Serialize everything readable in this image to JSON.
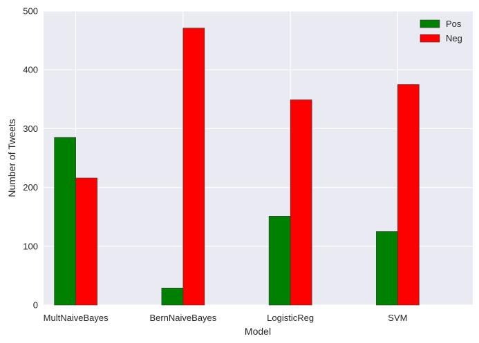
{
  "chart_data": {
    "type": "bar",
    "categories": [
      "MultNaiveBayes",
      "BernNaiveBayes",
      "LogisticReg",
      "SVM"
    ],
    "series": [
      {
        "name": "Pos",
        "color": "#008000",
        "values": [
          285,
          29,
          151,
          125
        ]
      },
      {
        "name": "Neg",
        "color": "#ff0000",
        "values": [
          216,
          471,
          349,
          375
        ]
      }
    ],
    "xlabel": "Model",
    "ylabel": "Number of Tweets",
    "ylim": [
      0,
      500
    ],
    "yticks": [
      0,
      100,
      200,
      300,
      400,
      500
    ],
    "grid": true,
    "legend_position": "top-right",
    "background_color": "#eaeaf2",
    "grid_color": "#ffffff"
  }
}
